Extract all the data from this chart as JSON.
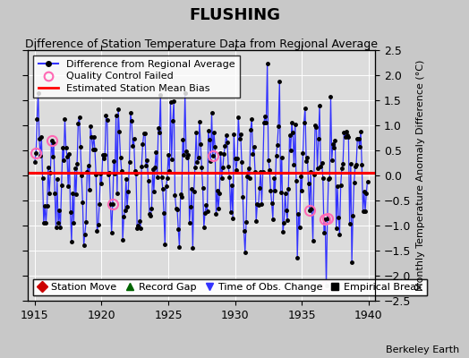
{
  "title": "FLUSHING",
  "subtitle": "Difference of Station Temperature Data from Regional Average",
  "ylabel": "Monthly Temperature Anomaly Difference (°C)",
  "xlim": [
    1914.5,
    1940.5
  ],
  "ylim": [
    -2.5,
    2.5
  ],
  "xticks": [
    1915,
    1920,
    1925,
    1930,
    1935,
    1940
  ],
  "yticks": [
    -2.5,
    -2,
    -1.5,
    -1,
    -0.5,
    0,
    0.5,
    1,
    1.5,
    2,
    2.5
  ],
  "mean_bias": 0.05,
  "line_color": "#3333FF",
  "marker_color": "#000000",
  "bias_color": "#FF0000",
  "qc_color": "#FF69B4",
  "plot_bg_color": "#DCDCDC",
  "fig_bg_color": "#C8C8C8",
  "watermark": "Berkeley Earth",
  "legend1_labels": [
    "Difference from Regional Average",
    "Quality Control Failed",
    "Estimated Station Mean Bias"
  ],
  "legend2_entries": [
    {
      "label": "Station Move",
      "color": "#CC0000",
      "marker": "D"
    },
    {
      "label": "Record Gap",
      "color": "#006400",
      "marker": "^"
    },
    {
      "label": "Time of Obs. Change",
      "color": "#3333FF",
      "marker": "v"
    },
    {
      "label": "Empirical Break",
      "color": "#000000",
      "marker": "s"
    }
  ],
  "seed": 42,
  "n_months": 300,
  "start_year": 1915.0,
  "qc_failed_indices": [
    1,
    15,
    70,
    160,
    247,
    261,
    262,
    263
  ],
  "title_fontsize": 13,
  "subtitle_fontsize": 9,
  "tick_fontsize": 9,
  "ylabel_fontsize": 8,
  "legend_fontsize": 8,
  "watermark_fontsize": 8
}
